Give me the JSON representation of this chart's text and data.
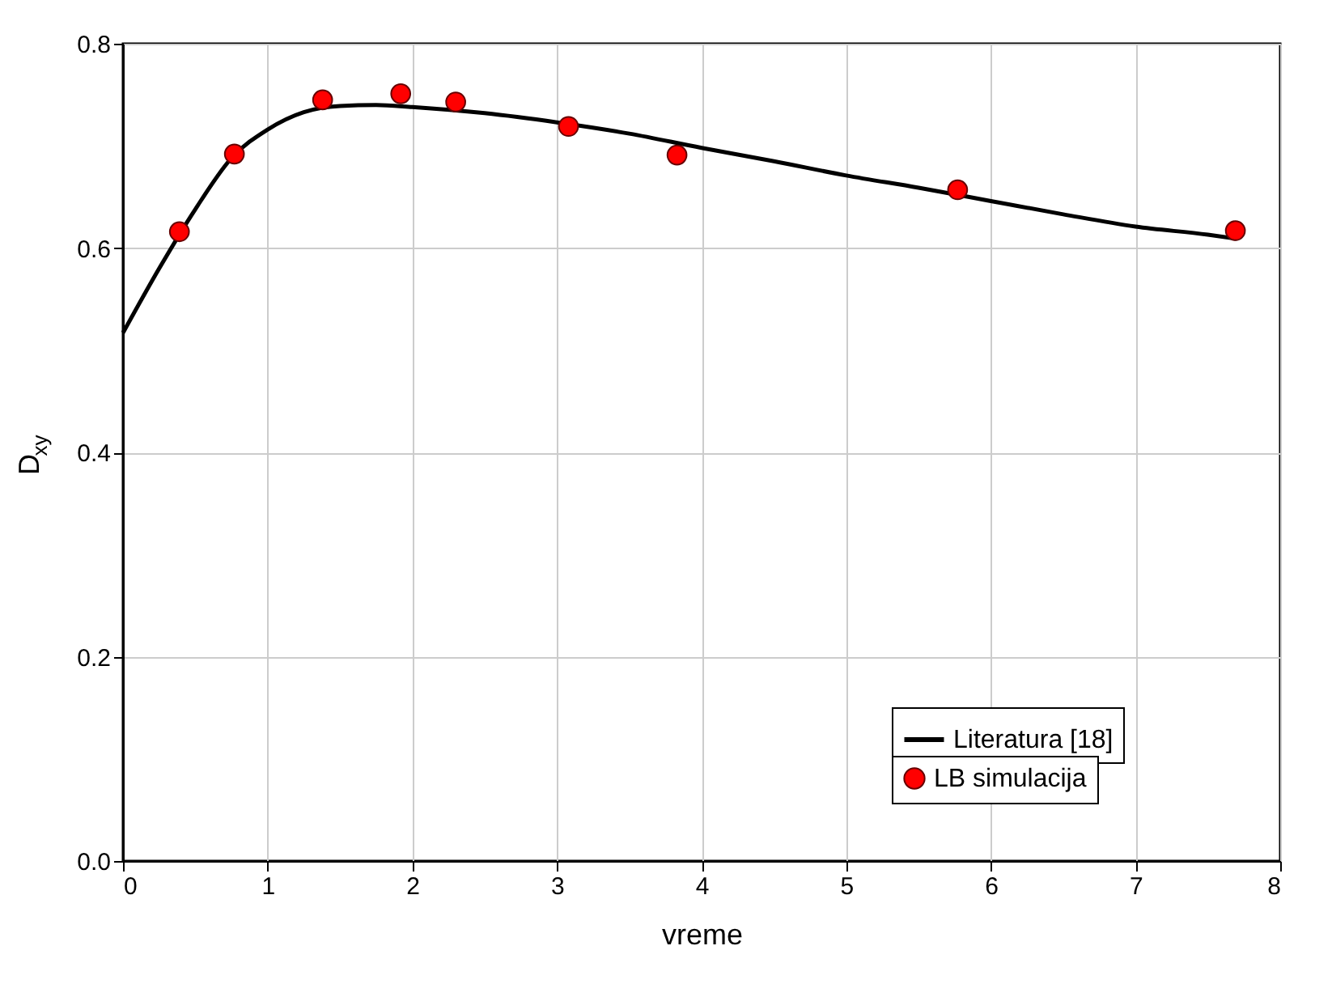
{
  "chart_data": {
    "type": "line",
    "xlabel": "vreme",
    "ylabel": "D$_{xy}$",
    "xlim": [
      0,
      8
    ],
    "ylim": [
      0,
      0.8
    ],
    "xticks": [
      0,
      1,
      2,
      3,
      4,
      5,
      6,
      7,
      8
    ],
    "yticks": [
      {
        "value": 0,
        "label": "0.0"
      },
      0.2,
      0.4,
      0.6,
      0.8
    ],
    "grid": true,
    "legend": "bottom right",
    "series": [
      {
        "name": "Literatura [18]",
        "color": "#000000",
        "marker": "none",
        "line_style": "solid",
        "x": [
          0,
          0.25,
          0.5,
          0.75,
          1.0,
          1.25,
          1.5,
          1.75,
          2,
          2.5,
          3,
          3.5,
          4,
          4.5,
          5,
          5.5,
          6,
          6.5,
          7,
          7.5,
          7.7
        ],
        "values": [
          0.517,
          0.58,
          0.638,
          0.688,
          0.716,
          0.733,
          0.739,
          0.74,
          0.738,
          0.732,
          0.723,
          0.712,
          0.698,
          0.685,
          0.671,
          0.659,
          0.646,
          0.633,
          0.621,
          0.613,
          0.609
        ]
      },
      {
        "name": "LB simulacija",
        "type": "scatter",
        "color": "#ff0000",
        "marker": "circle",
        "x": [
          0.39,
          0.77,
          1.38,
          1.92,
          2.3,
          3.08,
          3.83,
          5.77,
          7.69
        ],
        "values": [
          0.616,
          0.692,
          0.745,
          0.751,
          0.743,
          0.719,
          0.691,
          0.657,
          0.617
        ]
      }
    ]
  }
}
